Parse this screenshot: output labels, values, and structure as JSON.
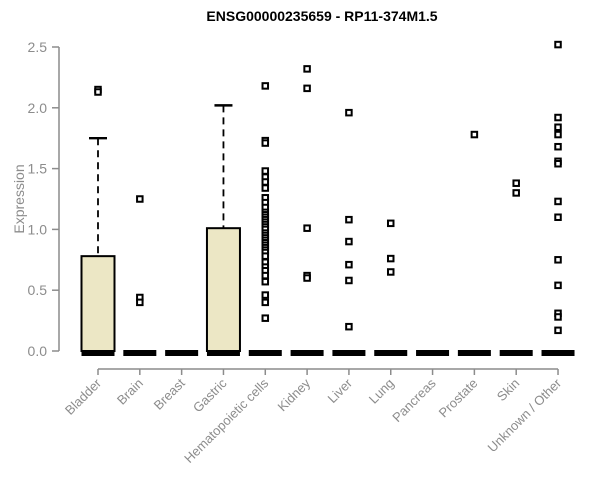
{
  "window": {
    "title": "ENSG00000235659 - RP11-374M1.5"
  },
  "chart_data": {
    "type": "boxplot",
    "title": "ENSG00000235659 - RP11-374M1.5",
    "ylabel": "Expression",
    "xlabel": "",
    "ylim": [
      0,
      2.5
    ],
    "yticks": [
      0.0,
      0.5,
      1.0,
      1.5,
      2.0,
      2.5
    ],
    "grid": false,
    "legend": "none",
    "categories": [
      "Bladder",
      "Brain",
      "Breast",
      "Gastric",
      "Hematopoietic cells",
      "Kidney",
      "Liver",
      "Lung",
      "Pancreas",
      "Prostate",
      "Skin",
      "Unknown / Other"
    ],
    "boxes": [
      {
        "category": "Bladder",
        "q1": 0,
        "median": 0,
        "q3": 0.78,
        "whisker_low": 0,
        "whisker_high": 1.75,
        "outliers": [
          2.15,
          2.13
        ]
      },
      {
        "category": "Brain",
        "q1": 0,
        "median": 0,
        "q3": 0,
        "whisker_low": 0,
        "whisker_high": 0,
        "outliers": [
          1.25,
          0.44,
          0.4
        ]
      },
      {
        "category": "Breast",
        "q1": 0,
        "median": 0,
        "q3": 0,
        "whisker_low": 0,
        "whisker_high": 0,
        "outliers": []
      },
      {
        "category": "Gastric",
        "q1": 0,
        "median": 0,
        "q3": 1.01,
        "whisker_low": 0,
        "whisker_high": 2.02,
        "outliers": []
      },
      {
        "category": "Hematopoietic cells",
        "q1": 0,
        "median": 0,
        "q3": 0,
        "whisker_low": 0,
        "whisker_high": 0,
        "outliers": [
          2.18,
          1.73,
          1.71,
          1.48,
          1.43,
          1.39,
          1.34,
          1.26,
          1.22,
          1.18,
          1.14,
          1.12,
          1.1,
          1.08,
          1.06,
          1.04,
          1.02,
          1.0,
          0.97,
          0.95,
          0.93,
          0.91,
          0.89,
          0.87,
          0.85,
          0.83,
          0.81,
          0.78,
          0.73,
          0.69,
          0.66,
          0.62,
          0.57,
          0.46,
          0.4,
          0.27
        ]
      },
      {
        "category": "Kidney",
        "q1": 0,
        "median": 0,
        "q3": 0,
        "whisker_low": 0,
        "whisker_high": 0,
        "outliers": [
          2.32,
          2.16,
          1.01,
          0.62,
          0.6
        ]
      },
      {
        "category": "Liver",
        "q1": 0,
        "median": 0,
        "q3": 0,
        "whisker_low": 0,
        "whisker_high": 0,
        "outliers": [
          1.96,
          1.08,
          0.9,
          0.71,
          0.58,
          0.2
        ]
      },
      {
        "category": "Lung",
        "q1": 0,
        "median": 0,
        "q3": 0,
        "whisker_low": 0,
        "whisker_high": 0,
        "outliers": [
          1.05,
          0.76,
          0.65
        ]
      },
      {
        "category": "Pancreas",
        "q1": 0,
        "median": 0,
        "q3": 0,
        "whisker_low": 0,
        "whisker_high": 0,
        "outliers": []
      },
      {
        "category": "Prostate",
        "q1": 0,
        "median": 0,
        "q3": 0,
        "whisker_low": 0,
        "whisker_high": 0,
        "outliers": [
          1.78
        ]
      },
      {
        "category": "Skin",
        "q1": 0,
        "median": 0,
        "q3": 0,
        "whisker_low": 0,
        "whisker_high": 0,
        "outliers": [
          1.38,
          1.3
        ]
      },
      {
        "category": "Unknown / Other",
        "q1": 0,
        "median": 0,
        "q3": 0,
        "whisker_low": 0,
        "whisker_high": 0,
        "outliers": [
          2.52,
          1.92,
          1.84,
          1.78,
          1.68,
          1.56,
          1.54,
          1.23,
          1.1,
          0.75,
          0.54,
          0.31,
          0.28,
          0.17
        ]
      }
    ],
    "colors": {
      "box_fill": "#ECE7C5",
      "box_border": "#000000",
      "median": "#000000",
      "whisker": "#000000",
      "outlier_border": "#000000",
      "outlier_fill": "#ffffff",
      "axis": "#8C8C8C",
      "tick_label": "#8C8C8C",
      "title": "#000000"
    }
  }
}
